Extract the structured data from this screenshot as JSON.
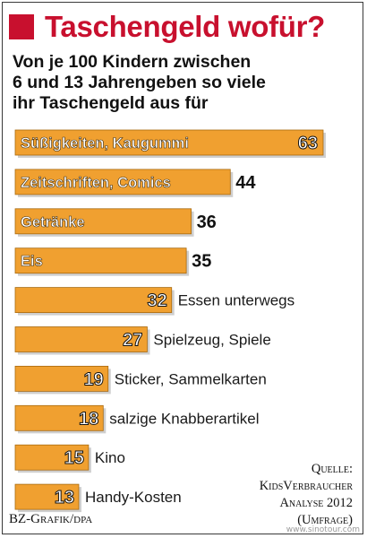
{
  "title": "Taschengeld wofür?",
  "subtitle_lines": [
    "Von je 100 Kindern zwischen",
    "6 und 13 Jahrengeben so viele",
    "ihr Taschengeld aus für"
  ],
  "colors": {
    "accent": "#c8102e",
    "bar": "#f0a030",
    "bar_edge": "#a86a10"
  },
  "chart_data": {
    "type": "bar",
    "orientation": "horizontal",
    "categories": [
      "Süßigkeiten, Kaugummi",
      "Zeitschriften, Comics",
      "Getränke",
      "Eis",
      "Essen unterwegs",
      "Spielzeug, Spiele",
      "Sticker, Sammelkarten",
      "salzige Knabberartikel",
      "Kino",
      "Handy-Kosten"
    ],
    "values": [
      63,
      44,
      36,
      35,
      32,
      27,
      19,
      18,
      15,
      13
    ],
    "xlim": [
      0,
      63
    ],
    "title": "Taschengeld wofür?",
    "label_inside": [
      true,
      true,
      true,
      true,
      false,
      false,
      false,
      false,
      false,
      false
    ],
    "grid": false
  },
  "footer": {
    "credit": "BZ-Grafik/dpa",
    "source_lines": [
      "Quelle:",
      "KidsVerbraucher",
      "Analyse 2012",
      "(Umfrage)"
    ]
  },
  "watermark": "www.sinotour.com"
}
